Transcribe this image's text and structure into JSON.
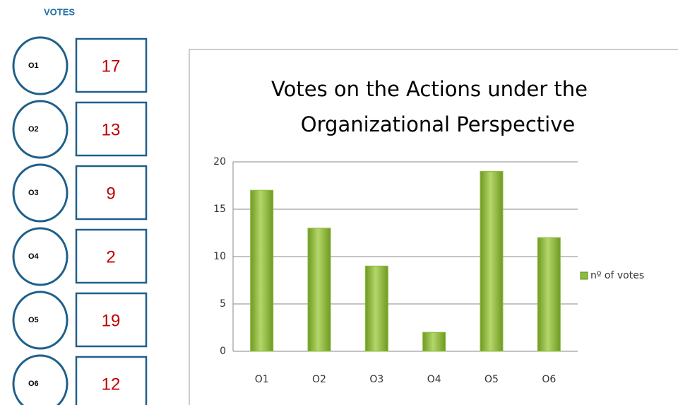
{
  "panel_title": "VOTES",
  "chart_data": {
    "type": "bar",
    "title": "Votes on the Actions under the",
    "subtitle": "Organizational Perspective",
    "categories": [
      "O1",
      "O2",
      "O3",
      "O4",
      "O5",
      "O6"
    ],
    "series": [
      {
        "name": "nº of votes",
        "color": "#8dbb3c",
        "values": [
          17,
          13,
          9,
          2,
          19,
          12
        ]
      }
    ],
    "ylim": [
      0,
      20
    ],
    "yticks": [
      0,
      5,
      10,
      15,
      20
    ],
    "grid": true,
    "legend": "right"
  }
}
